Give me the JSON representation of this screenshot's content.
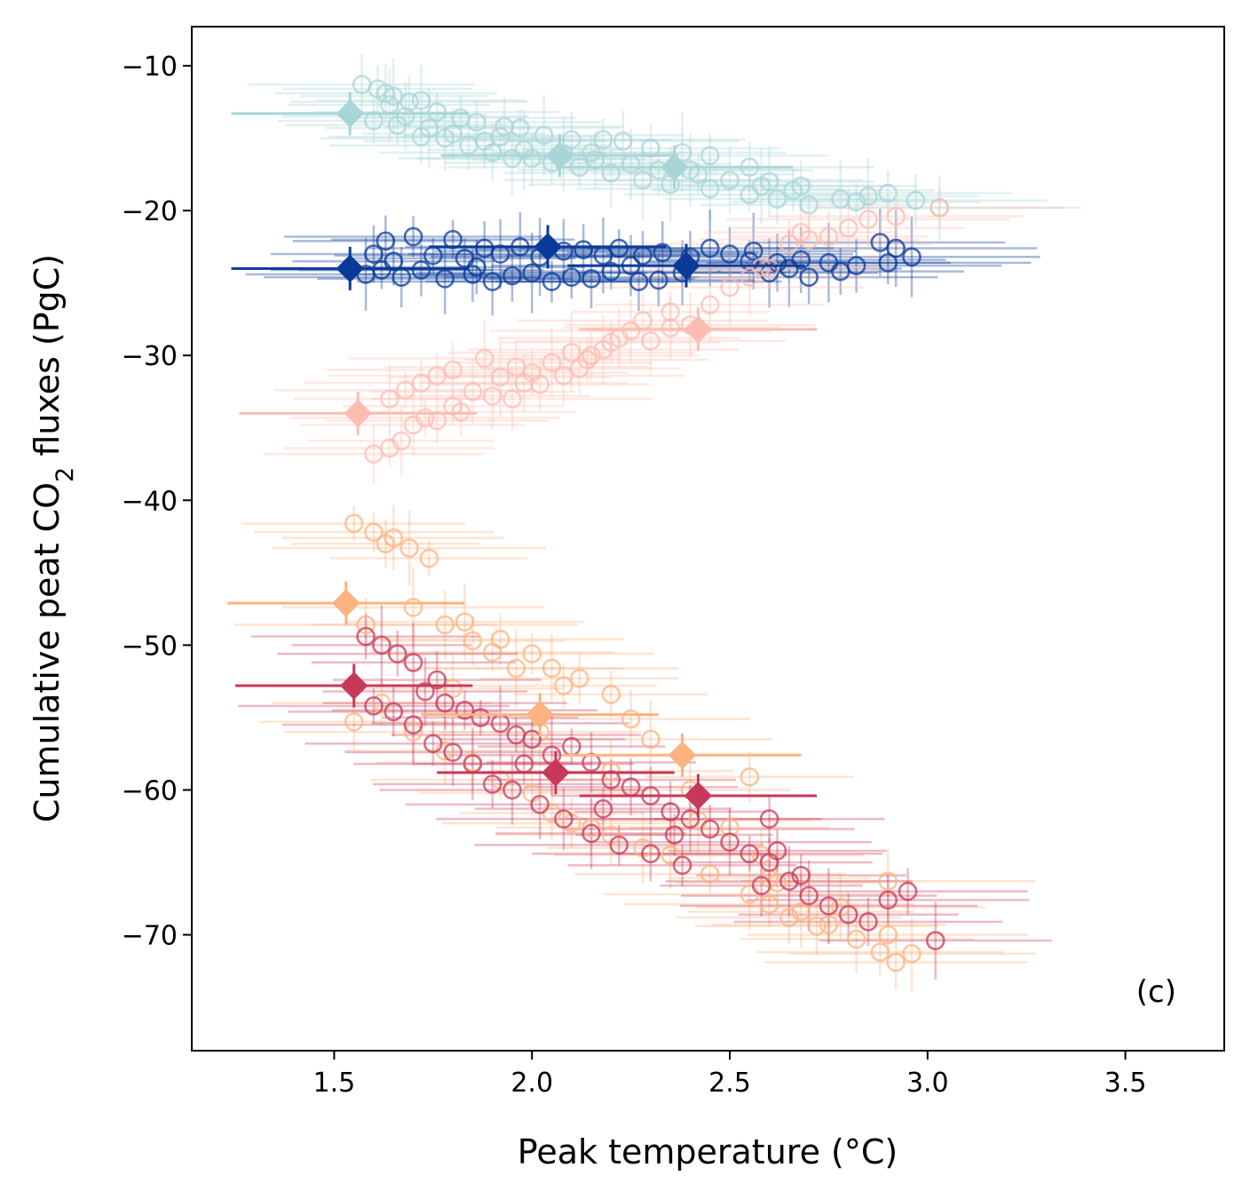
{
  "chart_data": {
    "type": "scatter",
    "panel_label": "(c)",
    "xlabel": "Peak temperature (°C)",
    "ylabel": {
      "prefix": "Cumulative peat CO",
      "subscript": "2",
      "suffix": " fluxes (PgC)"
    },
    "xlim": [
      1.14,
      3.75
    ],
    "ylim": [
      -78,
      -7.3
    ],
    "xticks": [
      1.5,
      2.0,
      2.5,
      3.0,
      3.5
    ],
    "xtick_labels": [
      "1.5",
      "2.0",
      "2.5",
      "3.0",
      "3.5"
    ],
    "yticks": [
      -10,
      -20,
      -30,
      -40,
      -50,
      -60,
      -70
    ],
    "ytick_labels": [
      "−10",
      "−20",
      "−30",
      "−40",
      "−50",
      "−60",
      "−70"
    ],
    "grid": false,
    "legend": "none",
    "series": [
      {
        "color": "#a8d5d6",
        "marker": "circle-open",
        "markers_diamond": [
          [
            1.54,
            -13.3
          ],
          [
            2.07,
            -16.2
          ],
          [
            2.36,
            -17.0
          ]
        ],
        "points": [
          [
            1.57,
            -11.3
          ],
          [
            1.61,
            -11.6
          ],
          [
            1.63,
            -11.9
          ],
          [
            1.65,
            -12.1
          ],
          [
            1.69,
            -12.5
          ],
          [
            1.72,
            -12.4
          ],
          [
            1.76,
            -13.2
          ],
          [
            1.82,
            -13.6
          ],
          [
            1.86,
            -13.9
          ],
          [
            1.93,
            -14.2
          ],
          [
            1.97,
            -14.3
          ],
          [
            2.03,
            -14.8
          ],
          [
            2.1,
            -15.1
          ],
          [
            2.18,
            -15.1
          ],
          [
            2.23,
            -15.2
          ],
          [
            2.3,
            -15.7
          ],
          [
            2.38,
            -16.0
          ],
          [
            2.45,
            -16.2
          ],
          [
            2.55,
            -17.0
          ],
          [
            2.6,
            -18.0
          ],
          [
            2.68,
            -18.3
          ],
          [
            2.78,
            -19.2
          ],
          [
            2.85,
            -19.0
          ],
          [
            2.9,
            -18.8
          ],
          [
            2.97,
            -19.3
          ],
          [
            3.03,
            -19.8
          ],
          [
            1.6,
            -13.8
          ],
          [
            1.66,
            -14.1
          ],
          [
            1.72,
            -14.9
          ],
          [
            1.78,
            -15.0
          ],
          [
            1.84,
            -15.5
          ],
          [
            1.9,
            -16.0
          ],
          [
            1.95,
            -16.4
          ],
          [
            2.0,
            -16.4
          ],
          [
            2.05,
            -16.7
          ],
          [
            2.12,
            -17.0
          ],
          [
            2.2,
            -17.4
          ],
          [
            2.28,
            -17.9
          ],
          [
            2.35,
            -18.2
          ],
          [
            2.45,
            -18.5
          ],
          [
            2.55,
            -18.9
          ],
          [
            2.62,
            -19.2
          ],
          [
            2.7,
            -19.6
          ],
          [
            1.68,
            -13.5
          ],
          [
            1.74,
            -14.3
          ],
          [
            1.8,
            -14.7
          ],
          [
            1.88,
            -15.2
          ],
          [
            1.98,
            -15.8
          ],
          [
            2.08,
            -16.1
          ],
          [
            2.16,
            -16.5
          ],
          [
            2.25,
            -16.8
          ],
          [
            2.32,
            -17.2
          ],
          [
            2.42,
            -17.5
          ],
          [
            2.5,
            -17.9
          ],
          [
            2.58,
            -18.3
          ],
          [
            1.64,
            -12.7
          ],
          [
            1.92,
            -14.9
          ],
          [
            2.15,
            -16.0
          ],
          [
            2.4,
            -17.2
          ],
          [
            2.66,
            -18.6
          ],
          [
            2.82,
            -19.4
          ]
        ]
      },
      {
        "color": "#0a3a99",
        "marker": "circle-open",
        "markers_diamond": [
          [
            1.54,
            -24.0
          ],
          [
            2.04,
            -22.5
          ],
          [
            2.39,
            -23.8
          ]
        ],
        "points": [
          [
            1.6,
            -23.0
          ],
          [
            1.63,
            -22.1
          ],
          [
            1.65,
            -23.5
          ],
          [
            1.7,
            -21.8
          ],
          [
            1.75,
            -23.1
          ],
          [
            1.8,
            -22.0
          ],
          [
            1.83,
            -23.3
          ],
          [
            1.88,
            -22.6
          ],
          [
            1.92,
            -23.0
          ],
          [
            1.97,
            -22.5
          ],
          [
            2.02,
            -23.2
          ],
          [
            2.08,
            -22.8
          ],
          [
            2.13,
            -22.7
          ],
          [
            2.18,
            -23.1
          ],
          [
            2.22,
            -22.6
          ],
          [
            2.28,
            -23.1
          ],
          [
            2.33,
            -22.9
          ],
          [
            2.4,
            -23.2
          ],
          [
            2.45,
            -22.6
          ],
          [
            2.5,
            -23.0
          ],
          [
            2.56,
            -22.8
          ],
          [
            2.62,
            -23.6
          ],
          [
            2.68,
            -23.4
          ],
          [
            2.75,
            -23.6
          ],
          [
            2.82,
            -23.8
          ],
          [
            2.88,
            -22.2
          ],
          [
            2.92,
            -22.6
          ],
          [
            2.96,
            -23.2
          ],
          [
            1.58,
            -24.4
          ],
          [
            1.62,
            -24.1
          ],
          [
            1.67,
            -24.6
          ],
          [
            1.72,
            -24.1
          ],
          [
            1.78,
            -24.7
          ],
          [
            1.85,
            -24.4
          ],
          [
            1.9,
            -24.9
          ],
          [
            1.95,
            -24.5
          ],
          [
            2.0,
            -24.3
          ],
          [
            2.05,
            -24.9
          ],
          [
            2.1,
            -24.6
          ],
          [
            2.15,
            -24.7
          ],
          [
            2.2,
            -24.2
          ],
          [
            2.27,
            -24.9
          ],
          [
            2.32,
            -24.8
          ],
          [
            2.38,
            -24.3
          ],
          [
            2.6,
            -24.3
          ],
          [
            2.65,
            -24.0
          ],
          [
            2.7,
            -24.6
          ],
          [
            2.9,
            -23.6
          ],
          [
            1.86,
            -23.9
          ],
          [
            2.25,
            -23.8
          ],
          [
            2.55,
            -23.5
          ],
          [
            2.78,
            -24.2
          ]
        ]
      },
      {
        "color": "#ffbcb0",
        "marker": "circle-open",
        "markers_diamond": [
          [
            1.56,
            -34.0
          ],
          [
            2.42,
            -28.2
          ]
        ],
        "points": [
          [
            1.6,
            -36.8
          ],
          [
            1.64,
            -36.4
          ],
          [
            1.67,
            -35.9
          ],
          [
            1.7,
            -34.8
          ],
          [
            1.73,
            -34.3
          ],
          [
            1.76,
            -34.5
          ],
          [
            1.8,
            -33.5
          ],
          [
            1.64,
            -33.0
          ],
          [
            1.68,
            -32.4
          ],
          [
            1.72,
            -31.9
          ],
          [
            1.76,
            -31.4
          ],
          [
            1.8,
            -31.0
          ],
          [
            1.85,
            -32.5
          ],
          [
            1.88,
            -30.2
          ],
          [
            1.92,
            -31.5
          ],
          [
            1.96,
            -30.8
          ],
          [
            2.0,
            -31.2
          ],
          [
            2.05,
            -30.5
          ],
          [
            2.1,
            -29.8
          ],
          [
            2.15,
            -30.0
          ],
          [
            2.2,
            -29.1
          ],
          [
            2.25,
            -28.3
          ],
          [
            2.3,
            -29.0
          ],
          [
            2.35,
            -28.1
          ],
          [
            1.9,
            -32.8
          ],
          [
            1.95,
            -33.0
          ],
          [
            2.02,
            -32.0
          ],
          [
            2.08,
            -31.4
          ],
          [
            2.12,
            -30.9
          ],
          [
            2.18,
            -29.6
          ],
          [
            2.22,
            -28.8
          ],
          [
            2.28,
            -27.6
          ],
          [
            2.35,
            -27.0
          ],
          [
            2.45,
            -26.5
          ],
          [
            2.5,
            -25.3
          ],
          [
            2.55,
            -24.6
          ],
          [
            2.6,
            -24.0
          ],
          [
            2.65,
            -22.3
          ],
          [
            2.7,
            -22.0
          ],
          [
            2.75,
            -21.8
          ],
          [
            2.8,
            -21.2
          ],
          [
            2.85,
            -20.6
          ],
          [
            2.92,
            -20.4
          ],
          [
            3.03,
            -19.8
          ],
          [
            1.82,
            -33.9
          ],
          [
            1.98,
            -31.9
          ],
          [
            2.14,
            -30.3
          ],
          [
            2.4,
            -27.9
          ],
          [
            2.58,
            -23.9
          ],
          [
            2.68,
            -21.5
          ]
        ]
      },
      {
        "color": "#fdb37f",
        "marker": "circle-open",
        "markers_diamond": [
          [
            1.53,
            -47.1
          ],
          [
            2.02,
            -54.8
          ],
          [
            2.38,
            -57.6
          ]
        ],
        "points": [
          [
            1.55,
            -41.6
          ],
          [
            1.6,
            -42.2
          ],
          [
            1.63,
            -43.0
          ],
          [
            1.65,
            -42.6
          ],
          [
            1.69,
            -43.3
          ],
          [
            1.74,
            -44.0
          ],
          [
            1.7,
            -47.4
          ],
          [
            1.78,
            -48.6
          ],
          [
            1.83,
            -48.4
          ],
          [
            1.85,
            -49.7
          ],
          [
            1.9,
            -50.5
          ],
          [
            1.92,
            -49.6
          ],
          [
            1.96,
            -51.6
          ],
          [
            2.0,
            -50.6
          ],
          [
            2.05,
            -51.6
          ],
          [
            2.08,
            -52.8
          ],
          [
            2.12,
            -52.3
          ],
          [
            2.2,
            -53.4
          ],
          [
            2.25,
            -55.1
          ],
          [
            2.3,
            -56.5
          ],
          [
            2.4,
            -60.0
          ],
          [
            2.5,
            -62.6
          ],
          [
            2.55,
            -59.1
          ],
          [
            2.58,
            -64.5
          ],
          [
            2.62,
            -66.4
          ],
          [
            2.68,
            -68.4
          ],
          [
            2.72,
            -69.4
          ],
          [
            2.78,
            -68.1
          ],
          [
            2.82,
            -70.3
          ],
          [
            2.88,
            -71.2
          ],
          [
            2.9,
            -70.0
          ],
          [
            2.92,
            -71.9
          ],
          [
            2.96,
            -71.3
          ],
          [
            1.55,
            -55.3
          ],
          [
            1.62,
            -54.0
          ],
          [
            1.7,
            -56.0
          ],
          [
            1.78,
            -57.3
          ],
          [
            1.85,
            -58.1
          ],
          [
            1.92,
            -59.3
          ],
          [
            2.0,
            -60.2
          ],
          [
            2.05,
            -61.6
          ],
          [
            2.1,
            -62.3
          ],
          [
            2.15,
            -62.6
          ],
          [
            2.2,
            -63.1
          ],
          [
            2.28,
            -64.0
          ],
          [
            2.35,
            -64.5
          ],
          [
            2.45,
            -65.8
          ],
          [
            2.55,
            -67.2
          ],
          [
            2.6,
            -67.9
          ],
          [
            2.65,
            -68.8
          ],
          [
            2.9,
            -66.3
          ],
          [
            1.58,
            -48.6
          ],
          [
            1.8,
            -53.0
          ],
          [
            2.02,
            -56.0
          ],
          [
            2.2,
            -58.7
          ],
          [
            2.42,
            -62.1
          ],
          [
            2.6,
            -66.1
          ],
          [
            2.75,
            -69.3
          ]
        ]
      },
      {
        "color": "#c8385a",
        "marker": "circle-open",
        "markers_diamond": [
          [
            1.55,
            -52.8
          ],
          [
            2.06,
            -58.8
          ],
          [
            2.42,
            -60.4
          ]
        ],
        "points": [
          [
            1.58,
            -49.4
          ],
          [
            1.62,
            -50.0
          ],
          [
            1.66,
            -50.6
          ],
          [
            1.7,
            -51.2
          ],
          [
            1.73,
            -53.2
          ],
          [
            1.78,
            -54.0
          ],
          [
            1.83,
            -54.5
          ],
          [
            1.87,
            -55.0
          ],
          [
            1.92,
            -55.4
          ],
          [
            1.96,
            -56.2
          ],
          [
            2.0,
            -56.5
          ],
          [
            2.05,
            -57.6
          ],
          [
            2.1,
            -57.0
          ],
          [
            2.15,
            -58.1
          ],
          [
            2.2,
            -59.3
          ],
          [
            2.25,
            -59.8
          ],
          [
            2.3,
            -60.4
          ],
          [
            2.35,
            -61.5
          ],
          [
            2.4,
            -62.0
          ],
          [
            2.45,
            -62.7
          ],
          [
            2.5,
            -63.6
          ],
          [
            2.55,
            -64.4
          ],
          [
            2.6,
            -65.0
          ],
          [
            2.65,
            -66.3
          ],
          [
            2.7,
            -67.3
          ],
          [
            2.75,
            -68.0
          ],
          [
            2.8,
            -68.6
          ],
          [
            2.85,
            -69.1
          ],
          [
            2.9,
            -67.6
          ],
          [
            2.95,
            -67.0
          ],
          [
            3.02,
            -70.4
          ],
          [
            1.6,
            -54.2
          ],
          [
            1.65,
            -54.6
          ],
          [
            1.7,
            -55.5
          ],
          [
            1.75,
            -56.8
          ],
          [
            1.8,
            -57.4
          ],
          [
            1.85,
            -58.2
          ],
          [
            1.9,
            -59.6
          ],
          [
            1.95,
            -60.0
          ],
          [
            2.02,
            -61.0
          ],
          [
            2.08,
            -62.0
          ],
          [
            2.15,
            -63.0
          ],
          [
            2.22,
            -63.8
          ],
          [
            2.3,
            -64.4
          ],
          [
            2.38,
            -65.2
          ],
          [
            2.6,
            -62.0
          ],
          [
            2.62,
            -64.2
          ],
          [
            2.68,
            -65.9
          ],
          [
            1.76,
            -52.4
          ],
          [
            1.98,
            -58.2
          ],
          [
            2.18,
            -61.3
          ],
          [
            2.36,
            -63.1
          ],
          [
            2.58,
            -66.6
          ]
        ]
      }
    ]
  }
}
